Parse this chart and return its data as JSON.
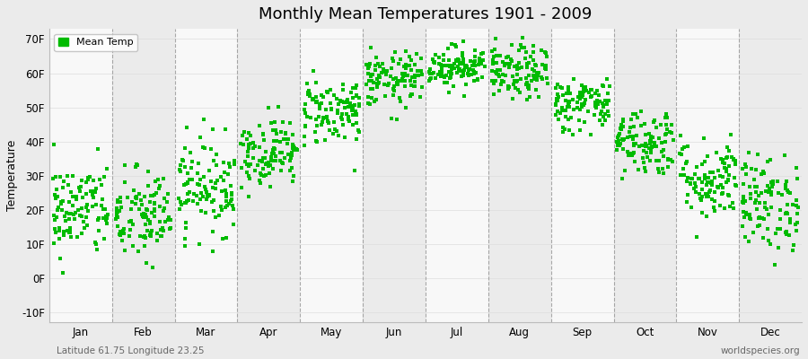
{
  "title": "Monthly Mean Temperatures 1901 - 2009",
  "ylabel": "Temperature",
  "xlabel_bottom_left": "Latitude 61.75 Longitude 23.25",
  "xlabel_bottom_right": "worldspecies.org",
  "yticks": [
    -10,
    0,
    10,
    20,
    30,
    40,
    50,
    60,
    70
  ],
  "ytick_labels": [
    "-10F",
    "0F",
    "10F",
    "20F",
    "30F",
    "40F",
    "50F",
    "60F",
    "70F"
  ],
  "ylim": [
    -13,
    73
  ],
  "months": [
    "Jan",
    "Feb",
    "Mar",
    "Apr",
    "May",
    "Jun",
    "Jul",
    "Aug",
    "Sep",
    "Oct",
    "Nov",
    "Dec"
  ],
  "dot_color": "#00BB00",
  "bg_color_odd": "#EBEBEB",
  "bg_color_even": "#F8F8F8",
  "grid_line_color": "#888888",
  "n_years": 109,
  "seed": 42,
  "mean_temps_F": [
    20,
    18,
    27,
    37,
    49,
    58,
    62,
    60,
    51,
    40,
    29,
    22
  ],
  "spread_F": [
    7,
    7,
    7,
    5,
    5,
    4,
    3,
    4,
    4,
    5,
    6,
    7
  ]
}
